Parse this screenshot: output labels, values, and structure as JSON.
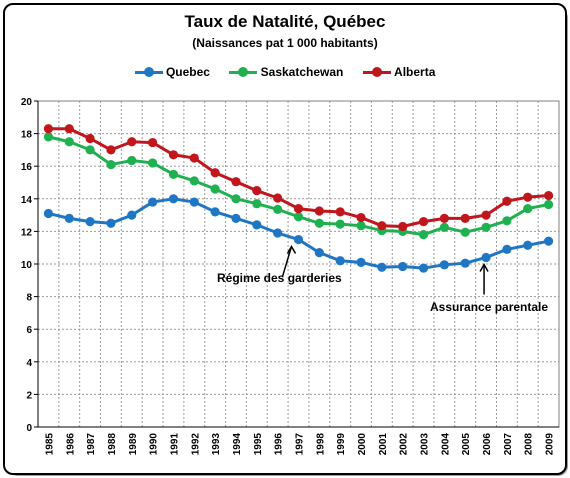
{
  "chart_data": {
    "type": "line",
    "title": "Taux de Natalité, Québec",
    "subtitle": "(Naissances pat 1 000 habitants)",
    "x": [
      "1985",
      "1986",
      "1987",
      "1988",
      "1989",
      "1990",
      "1991",
      "1992",
      "1993",
      "1994",
      "1995",
      "1996",
      "1997",
      "1998",
      "1999",
      "2000",
      "2001",
      "2002",
      "2003",
      "2004",
      "2005",
      "2006",
      "2007",
      "2008",
      "2009"
    ],
    "ylim": [
      0,
      20
    ],
    "yticks": [
      "0",
      "2",
      "4",
      "6",
      "8",
      "10",
      "12",
      "14",
      "16",
      "18",
      "20"
    ],
    "grid": true,
    "legend_position": "top",
    "series": [
      {
        "name": "Quebec",
        "color": "#1f77c4",
        "values": [
          13.1,
          12.8,
          12.6,
          12.5,
          13.0,
          13.8,
          14.0,
          13.8,
          13.2,
          12.8,
          12.4,
          11.9,
          11.5,
          10.7,
          10.2,
          10.1,
          9.8,
          9.85,
          9.75,
          9.95,
          10.05,
          10.4,
          10.9,
          11.15,
          11.4
        ]
      },
      {
        "name": "Saskatchewan",
        "color": "#1fb050",
        "values": [
          17.8,
          17.5,
          17.0,
          16.1,
          16.35,
          16.2,
          15.5,
          15.1,
          14.6,
          14.0,
          13.7,
          13.35,
          12.9,
          12.5,
          12.45,
          12.35,
          12.05,
          12.0,
          11.8,
          12.25,
          11.95,
          12.25,
          12.65,
          13.4,
          13.65
        ]
      },
      {
        "name": "Alberta",
        "color": "#c0161c",
        "values": [
          18.3,
          18.3,
          17.7,
          17.0,
          17.5,
          17.45,
          16.7,
          16.5,
          15.6,
          15.05,
          14.5,
          14.05,
          13.4,
          13.25,
          13.2,
          12.85,
          12.35,
          12.3,
          12.6,
          12.8,
          12.8,
          13.0,
          13.85,
          14.1,
          14.2
        ]
      }
    ],
    "annotations": [
      {
        "text": "Régime des garderies",
        "year": "1997"
      },
      {
        "text": "Assurance parentale",
        "year": "2006"
      }
    ]
  }
}
